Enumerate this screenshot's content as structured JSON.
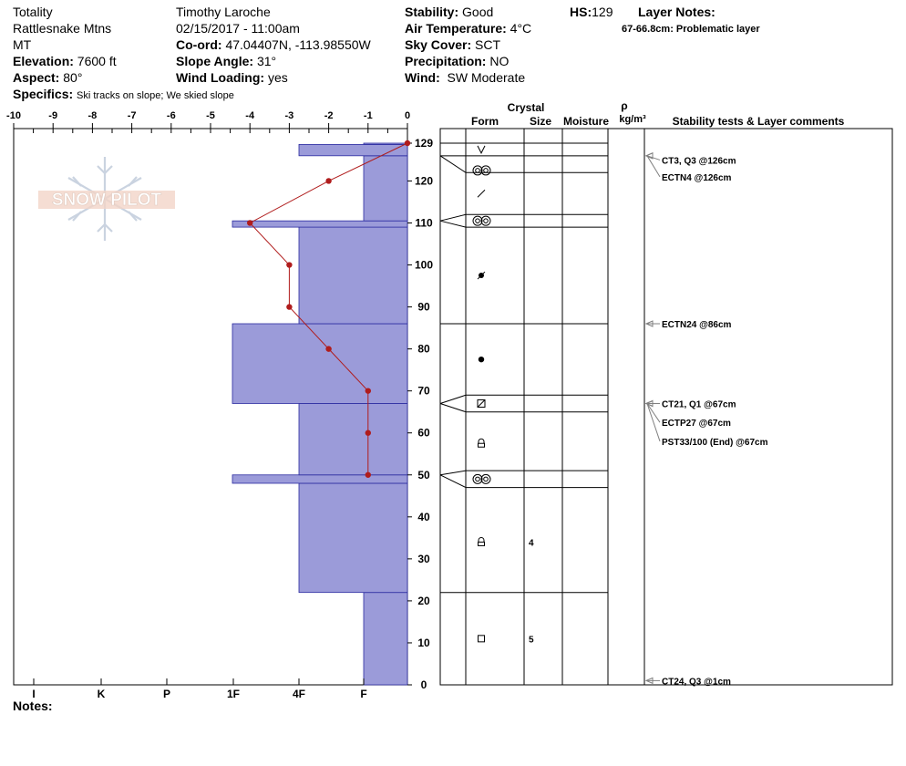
{
  "header": {
    "name": "Totality",
    "range": "Rattlesnake Mtns",
    "state": "MT",
    "elevation_label": "Elevation:",
    "elevation": "7600 ft",
    "aspect_label": "Aspect:",
    "aspect": "80°",
    "specifics_label": "Specifics:",
    "specifics": "Ski tracks on slope; We skied slope",
    "observer": "Timothy  Laroche",
    "datetime": "02/15/2017 - 11:00am",
    "coord_label": "Co-ord:",
    "coord": "47.04407N, -113.98550W",
    "slope_label": "Slope Angle:",
    "slope": "31°",
    "wind_loading_label": "Wind Loading:",
    "wind_loading": "yes",
    "stability_label": "Stability:",
    "stability": "Good",
    "air_temp_label": "Air Temperature:",
    "air_temp": "4°C",
    "sky_label": "Sky Cover:",
    "sky": "SCT",
    "precip_label": "Precipitation:",
    "precip": "NO",
    "wind_label": "Wind:",
    "wind": "SW Moderate",
    "hs_label": "HS:",
    "hs": "129",
    "layer_notes_label": "Layer Notes:",
    "layer_note": "67-66.8cm: Problematic layer",
    "notes_label": "Notes:",
    "logo_text": "SNOW PILOT"
  },
  "chart_data": {
    "type": "snow-profile",
    "temperature_axis": {
      "ticks": [
        "-10",
        "-9",
        "-8",
        "-7",
        "-6",
        "-5",
        "-4",
        "-3",
        "-2",
        "-1",
        "0"
      ],
      "range": [
        -10,
        0
      ]
    },
    "height_axis": {
      "range": [
        0,
        129
      ],
      "ticks": [
        "0",
        "10",
        "20",
        "30",
        "40",
        "50",
        "60",
        "70",
        "80",
        "90",
        "100",
        "110",
        "120",
        "129"
      ]
    },
    "hardness_axis": {
      "ticks": [
        "I",
        "K",
        "P",
        "1F",
        "4F",
        "F"
      ]
    },
    "hardness_profile": [
      {
        "bottom": 0,
        "top": 22,
        "hardness": "F"
      },
      {
        "bottom": 22,
        "top": 48,
        "hardness": "4F"
      },
      {
        "bottom": 48,
        "top": 50,
        "hardness": "1F-"
      },
      {
        "bottom": 50,
        "top": 67,
        "hardness": "4F"
      },
      {
        "bottom": 67,
        "top": 86,
        "hardness": "1F-"
      },
      {
        "bottom": 86,
        "top": 109,
        "hardness": "4F"
      },
      {
        "bottom": 109,
        "top": 110.5,
        "hardness": "1F-"
      },
      {
        "bottom": 110.5,
        "top": 126,
        "hardness": "F"
      },
      {
        "bottom": 126,
        "top": 128.7,
        "hardness": "4F"
      },
      {
        "bottom": 128.7,
        "top": 129,
        "hardness": "F"
      }
    ],
    "temperature_profile": [
      {
        "height": 129,
        "temp": 0
      },
      {
        "height": 120,
        "temp": -2
      },
      {
        "height": 110,
        "temp": -4
      },
      {
        "height": 100,
        "temp": -3
      },
      {
        "height": 90,
        "temp": -3
      },
      {
        "height": 80,
        "temp": -2
      },
      {
        "height": 70,
        "temp": -1
      },
      {
        "height": 60,
        "temp": -1
      },
      {
        "height": 50,
        "temp": -1
      }
    ],
    "columns": {
      "crystal": "Crystal",
      "form": "Form",
      "size": "Size",
      "moisture": "Moisture",
      "rho": "ρ",
      "density_unit": "kg/m³",
      "comments": "Stability tests & Layer comments"
    },
    "layer_boundaries": [
      129,
      126,
      122,
      112,
      109,
      86,
      69,
      65,
      51,
      47,
      22
    ],
    "form_symbols": [
      {
        "y": 127.5,
        "symbol": "v-glyph"
      },
      {
        "y": 122.5,
        "symbol": "double-circle-glyph"
      },
      {
        "y": 117,
        "symbol": "slash-glyph"
      },
      {
        "y": 110.5,
        "symbol": "double-circle-glyph"
      },
      {
        "y": 97.5,
        "symbol": "dot-star-glyph"
      },
      {
        "y": 77.5,
        "symbol": "dot-glyph"
      },
      {
        "y": 67,
        "symbol": "square-slash-glyph"
      },
      {
        "y": 57.5,
        "symbol": "lock-glyph"
      },
      {
        "y": 49,
        "symbol": "double-circle-glyph"
      },
      {
        "y": 34,
        "symbol": "lock-glyph",
        "size": "4"
      },
      {
        "y": 11,
        "symbol": "square-glyph",
        "size": "5"
      }
    ],
    "stability_tests": [
      {
        "label": "CT3, Q3 @126cm",
        "height": 126,
        "text_y": 125
      },
      {
        "label": "ECTN4 @126cm",
        "height": 126,
        "text_y": 121
      },
      {
        "label": "ECTN24 @86cm",
        "height": 86,
        "text_y": 86
      },
      {
        "label": "CT21, Q1 @67cm",
        "height": 67,
        "text_y": 67
      },
      {
        "label": "ECTP27 @67cm",
        "height": 67,
        "text_y": 62.5
      },
      {
        "label": "PST33/100 (End) @67cm",
        "height": 67,
        "text_y": 58
      },
      {
        "label": "CT24, Q3 @1cm",
        "height": 1,
        "text_y": 1
      }
    ],
    "colors": {
      "hardness_fill": "#9b9bd9",
      "hardness_edge": "#2a2aa0",
      "temperature": "#b01c1c",
      "arrow": "#808080"
    }
  }
}
